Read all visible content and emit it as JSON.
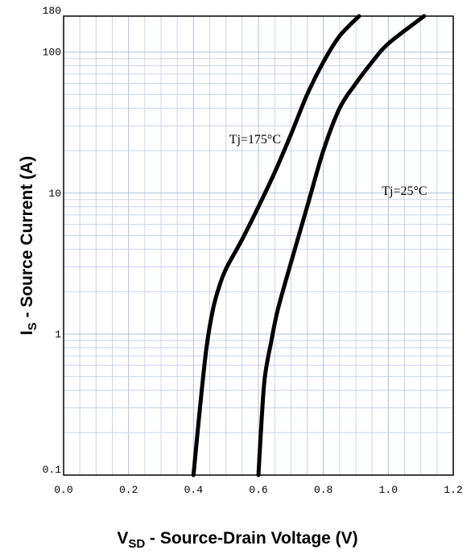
{
  "chart_data": {
    "type": "line",
    "xlabel": {
      "main": "V",
      "sub": "SD",
      "rest": " - Source-Drain Voltage (V)"
    },
    "ylabel": {
      "main": "I",
      "sub": "S",
      "rest": " - Source Current (A)"
    },
    "xlim": [
      0,
      1.2
    ],
    "ylim": [
      0.1,
      180
    ],
    "yscale": "log",
    "grid": true,
    "x_ticks": [
      "0.0",
      "0.2",
      "0.4",
      "0.6",
      "0.8",
      "1.0",
      "1.2"
    ],
    "y_ticks": [
      {
        "value": 0.1,
        "label": "0.1"
      },
      {
        "value": 1,
        "label": "1"
      },
      {
        "value": 10,
        "label": "10"
      },
      {
        "value": 100,
        "label": "100"
      },
      {
        "value": 180,
        "label": "180"
      }
    ],
    "series": [
      {
        "name": "Tj=175°C",
        "points": [
          [
            0.4,
            0.1
          ],
          [
            0.42,
            0.3
          ],
          [
            0.44,
            0.8
          ],
          [
            0.46,
            1.5
          ],
          [
            0.48,
            2.2
          ],
          [
            0.5,
            2.9
          ],
          [
            0.55,
            4.7
          ],
          [
            0.6,
            8.0
          ],
          [
            0.65,
            14
          ],
          [
            0.7,
            26
          ],
          [
            0.75,
            50
          ],
          [
            0.8,
            85
          ],
          [
            0.85,
            130
          ],
          [
            0.91,
            180
          ]
        ]
      },
      {
        "name": "Tj=25°C",
        "points": [
          [
            0.6,
            0.1
          ],
          [
            0.61,
            0.25
          ],
          [
            0.62,
            0.5
          ],
          [
            0.64,
            0.9
          ],
          [
            0.66,
            1.5
          ],
          [
            0.7,
            3.2
          ],
          [
            0.75,
            8.0
          ],
          [
            0.8,
            20
          ],
          [
            0.85,
            40
          ],
          [
            0.9,
            60
          ],
          [
            0.95,
            85
          ],
          [
            1.0,
            115
          ],
          [
            1.11,
            180
          ]
        ]
      }
    ],
    "annotations": [
      {
        "text": "Tj=175°C",
        "x": 0.51,
        "y": 22.6
      },
      {
        "text": "Tj=25°C",
        "x": 0.98,
        "y": 9.7
      }
    ]
  }
}
